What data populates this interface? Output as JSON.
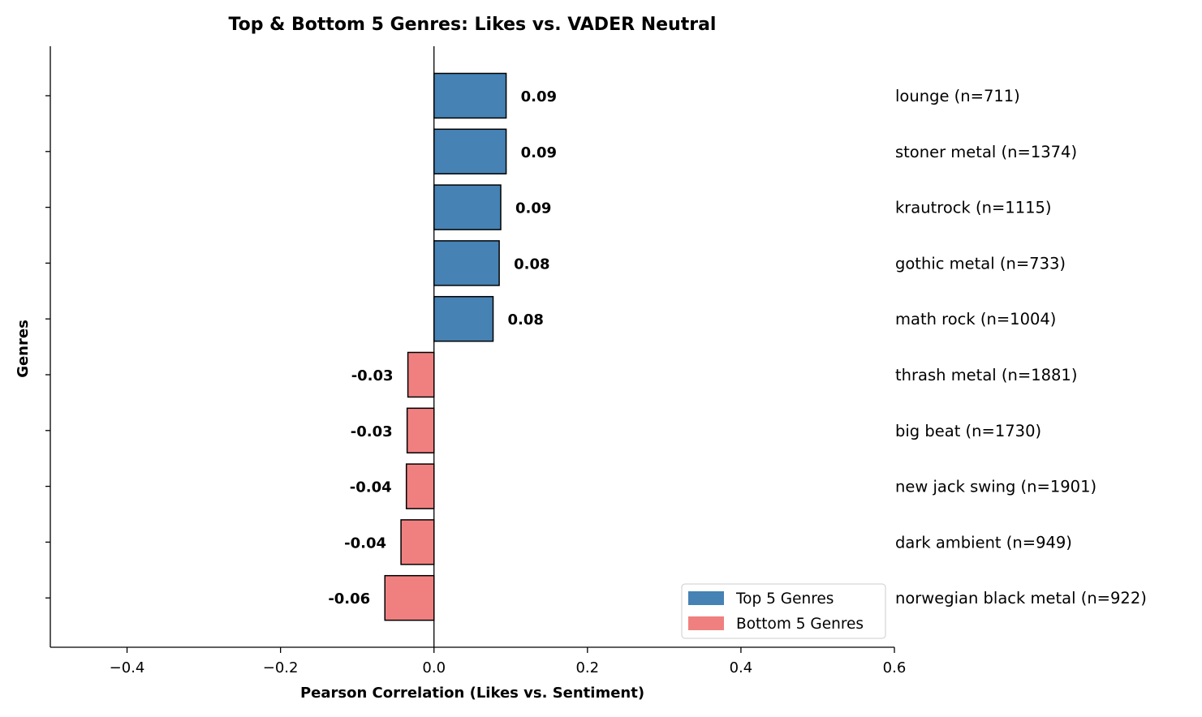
{
  "chart_data": {
    "type": "bar",
    "orientation": "horizontal",
    "title": "Top & Bottom 5 Genres: Likes vs. VADER Neutral",
    "xlabel": "Pearson Correlation (Likes vs. Sentiment)",
    "ylabel": "Genres",
    "xlim": [
      -0.5,
      0.6
    ],
    "xticks": [
      -0.4,
      -0.2,
      0.0,
      0.2,
      0.4,
      0.6
    ],
    "xtick_labels": [
      "−0.4",
      "−0.2",
      "0.0",
      "0.2",
      "0.4",
      "0.6"
    ],
    "grid": false,
    "legend_position": "lower-right",
    "colors": {
      "top": "#4682b4",
      "bottom": "#f08080",
      "edge": "#000000",
      "axis": "#000000",
      "text": "#000000"
    },
    "legend": [
      {
        "label": "Top 5 Genres",
        "group": "top"
      },
      {
        "label": "Bottom 5 Genres",
        "group": "bottom"
      }
    ],
    "bars": [
      {
        "category": "lounge (n=711)",
        "value": 0.094,
        "value_label": "0.09",
        "group": "top"
      },
      {
        "category": "stoner metal (n=1374)",
        "value": 0.094,
        "value_label": "0.09",
        "group": "top"
      },
      {
        "category": "krautrock (n=1115)",
        "value": 0.087,
        "value_label": "0.09",
        "group": "top"
      },
      {
        "category": "gothic metal (n=733)",
        "value": 0.085,
        "value_label": "0.08",
        "group": "top"
      },
      {
        "category": "math rock (n=1004)",
        "value": 0.077,
        "value_label": "0.08",
        "group": "top"
      },
      {
        "category": "thrash metal (n=1881)",
        "value": -0.034,
        "value_label": "-0.03",
        "group": "bottom"
      },
      {
        "category": "big beat (n=1730)",
        "value": -0.035,
        "value_label": "-0.03",
        "group": "bottom"
      },
      {
        "category": "new jack swing (n=1901)",
        "value": -0.036,
        "value_label": "-0.04",
        "group": "bottom"
      },
      {
        "category": "dark ambient (n=949)",
        "value": -0.043,
        "value_label": "-0.04",
        "group": "bottom"
      },
      {
        "category": "norwegian black metal (n=922)",
        "value": -0.064,
        "value_label": "-0.06",
        "group": "bottom"
      }
    ]
  }
}
